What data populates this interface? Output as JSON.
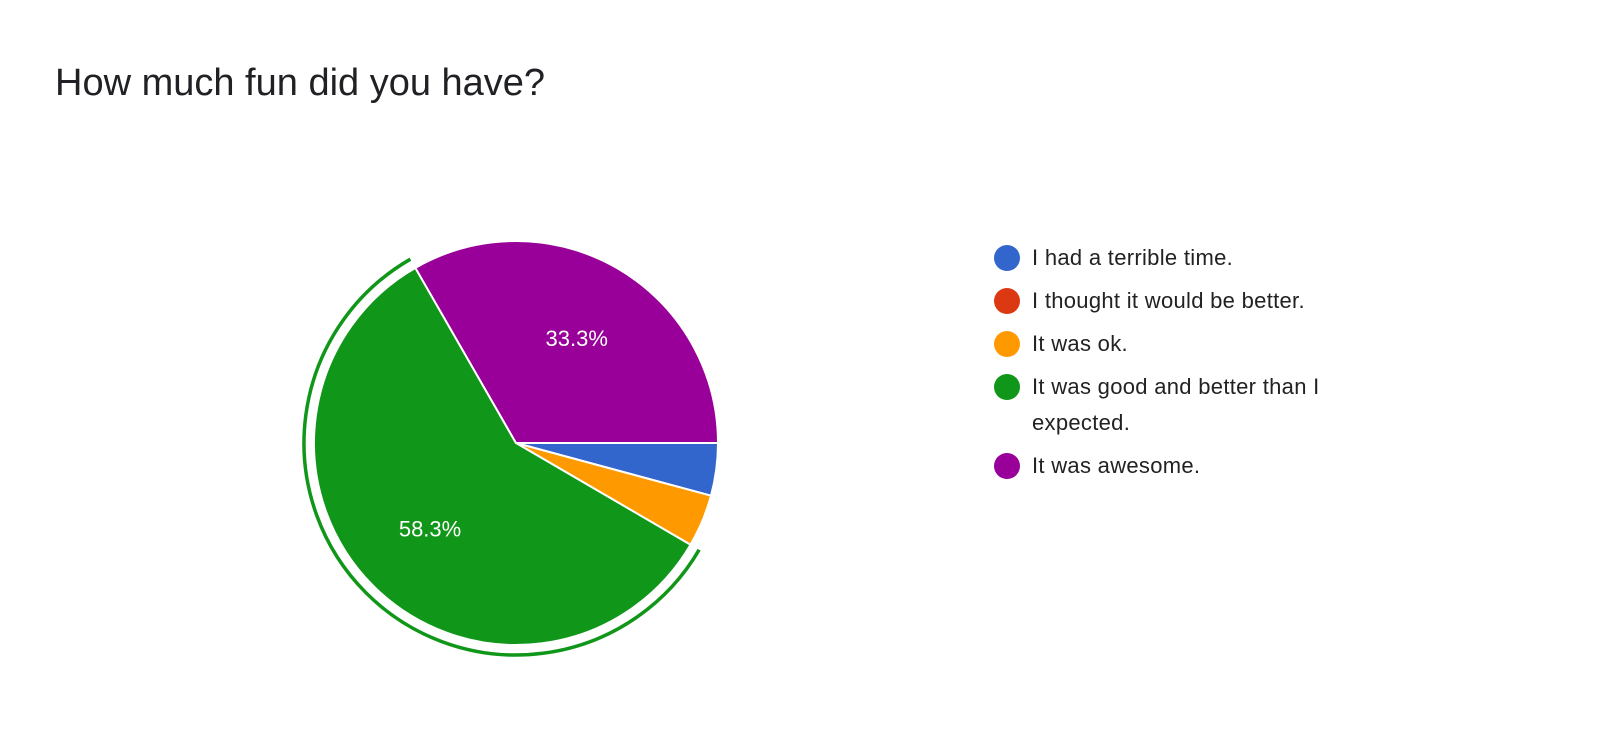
{
  "chart_data": {
    "type": "pie",
    "title": "How much fun did you have?",
    "legend_position": "right",
    "slices": [
      {
        "label": "I had a terrible time.",
        "percent": 4.2,
        "color": "#3366cc",
        "show_label": false
      },
      {
        "label": "I thought it would be better.",
        "percent": 0,
        "color": "#dc3912",
        "show_label": false
      },
      {
        "label": "It was ok.",
        "percent": 4.2,
        "color": "#ff9900",
        "show_label": false
      },
      {
        "label": "It was good and better than I expected.",
        "percent": 58.3,
        "color": "#109618",
        "show_label": true,
        "highlighted": true
      },
      {
        "label": "It was awesome.",
        "percent": 33.3,
        "color": "#990099",
        "show_label": true
      }
    ],
    "data_labels": [
      "",
      "",
      "",
      "58.3%",
      "33.3%"
    ]
  }
}
